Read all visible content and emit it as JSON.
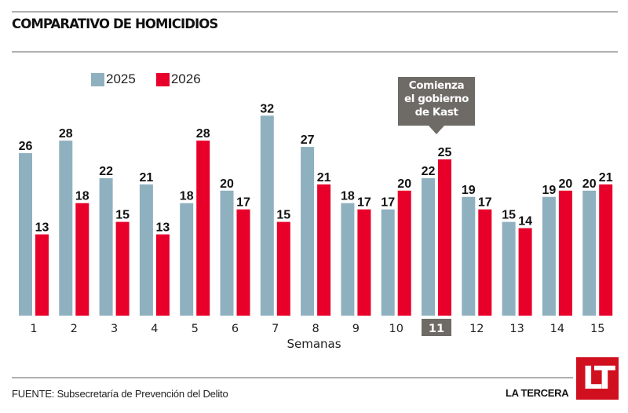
{
  "header": {
    "title": "COMPARATIVO DE HOMICIDIOS"
  },
  "legend": [
    {
      "label": "2025",
      "color": "#8fb1bf"
    },
    {
      "label": "2026",
      "color": "#e8002a"
    }
  ],
  "annotation": {
    "lines": [
      "Comienza",
      "el gobierno",
      "de Kast"
    ],
    "week": "11"
  },
  "footer": {
    "source": "FUENTE: Subsecretaría de Prevención del Delito",
    "brand": "LA TERCERA",
    "logo": "LT"
  },
  "chart_data": {
    "type": "bar",
    "title": "COMPARATIVO DE HOMICIDIOS",
    "xlabel": "Semanas",
    "ylabel": "",
    "ylim": [
      0,
      32
    ],
    "grid": false,
    "legend_position": "top-left",
    "categories": [
      "1",
      "2",
      "3",
      "4",
      "5",
      "6",
      "7",
      "8",
      "9",
      "10",
      "11",
      "12",
      "13",
      "14",
      "15"
    ],
    "highlight_category": "11",
    "series": [
      {
        "name": "2025",
        "color": "#8fb1bf",
        "values": [
          26,
          28,
          22,
          21,
          18,
          20,
          32,
          27,
          18,
          17,
          22,
          19,
          15,
          19,
          20
        ]
      },
      {
        "name": "2026",
        "color": "#e8002a",
        "values": [
          13,
          18,
          15,
          13,
          28,
          17,
          15,
          21,
          17,
          20,
          25,
          17,
          14,
          20,
          21
        ]
      }
    ]
  }
}
